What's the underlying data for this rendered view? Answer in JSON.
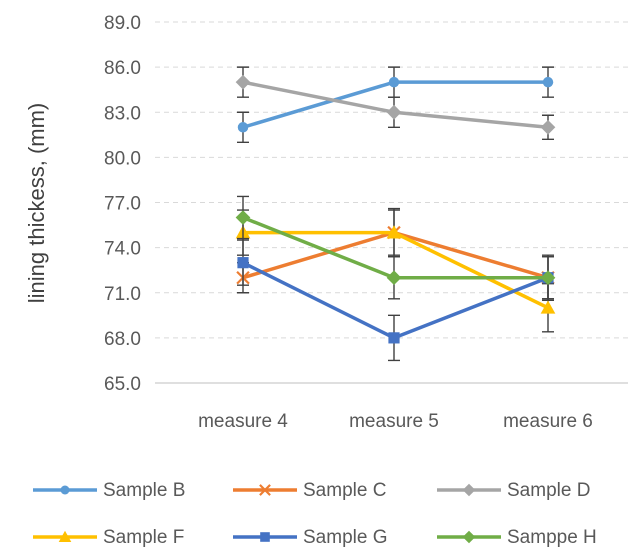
{
  "chart_data": {
    "type": "line",
    "title": "",
    "xlabel": "",
    "ylabel": "lining thickess, (mm)",
    "categories": [
      "measure 4",
      "measure 5",
      "measure 6"
    ],
    "ylim": [
      65,
      89
    ],
    "yticks": [
      "65.0",
      "68.0",
      "71.0",
      "74.0",
      "77.0",
      "80.0",
      "83.0",
      "86.0",
      "89.0"
    ],
    "grid": "horizontal dashed",
    "legend_position": "bottom",
    "error_bars": true,
    "series": [
      {
        "name": "Sample B",
        "color": "#5b9bd5",
        "marker": "circle",
        "values": [
          82,
          85,
          85
        ],
        "error": [
          1.0,
          1.0,
          1.0
        ]
      },
      {
        "name": "Sample C",
        "color": "#ed7d31",
        "marker": "x",
        "values": [
          72,
          75,
          72
        ],
        "error": [
          1.0,
          1.6,
          1.5
        ]
      },
      {
        "name": "Sample D",
        "color": "#a5a5a5",
        "marker": "diamond",
        "values": [
          85,
          83,
          82
        ],
        "error": [
          1.0,
          1.0,
          0.8
        ]
      },
      {
        "name": "Sample F",
        "color": "#ffc000",
        "marker": "triangle",
        "values": [
          75,
          75,
          70
        ],
        "error": [
          1.5,
          1.5,
          1.6
        ]
      },
      {
        "name": "Sample G",
        "color": "#4472c4",
        "marker": "square",
        "values": [
          73,
          68,
          72
        ],
        "error": [
          1.5,
          1.5,
          1.4
        ]
      },
      {
        "name": "Samppe H",
        "color": "#70ad47",
        "marker": "diamond",
        "values": [
          76,
          72,
          72
        ],
        "error": [
          1.4,
          1.4,
          1.4
        ]
      }
    ]
  }
}
